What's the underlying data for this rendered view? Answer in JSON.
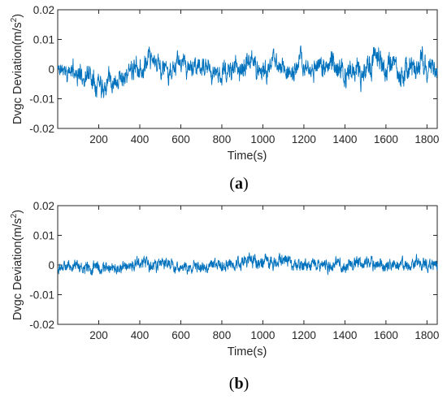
{
  "chart_data": [
    {
      "type": "line",
      "panel_label": "a",
      "xlabel": "Time(s)",
      "ylabel": "Dvgc Deviation(m/s",
      "ylabel_superscript": "2",
      "ylabel_close": ")",
      "xlim": [
        0,
        1850
      ],
      "ylim": [
        -0.02,
        0.02
      ],
      "xticks": [
        200,
        400,
        600,
        800,
        1000,
        1200,
        1400,
        1600,
        1800
      ],
      "yticks": [
        -0.02,
        -0.01,
        0,
        0.01,
        0.02
      ],
      "ytick_labels": [
        "-0.02",
        "-0.01",
        "0",
        "0.01",
        "0.02"
      ],
      "line_color": "#0072BD",
      "grid": false,
      "envelope": [
        [
          0,
          0.006,
          -0.006
        ],
        [
          100,
          0.008,
          -0.01
        ],
        [
          200,
          0.009,
          -0.01
        ],
        [
          300,
          0.009,
          -0.009
        ],
        [
          400,
          0.009,
          -0.01
        ],
        [
          500,
          0.009,
          -0.008
        ],
        [
          600,
          0.008,
          -0.008
        ],
        [
          700,
          0.007,
          -0.008
        ],
        [
          800,
          0.008,
          -0.009
        ],
        [
          900,
          0.011,
          -0.01
        ],
        [
          1000,
          0.01,
          -0.009
        ],
        [
          1100,
          0.009,
          -0.008
        ],
        [
          1200,
          0.009,
          -0.009
        ],
        [
          1300,
          0.01,
          -0.01
        ],
        [
          1400,
          0.013,
          -0.011
        ],
        [
          1500,
          0.012,
          -0.012
        ],
        [
          1600,
          0.01,
          -0.01
        ],
        [
          1700,
          0.012,
          -0.01
        ],
        [
          1800,
          0.012,
          -0.01
        ],
        [
          1850,
          0.008,
          -0.006
        ]
      ]
    },
    {
      "type": "line",
      "panel_label": "b",
      "xlabel": "Time(s)",
      "ylabel": "Dvgc Deviation(m/s",
      "ylabel_superscript": "2",
      "ylabel_close": ")",
      "xlim": [
        0,
        1850
      ],
      "ylim": [
        -0.02,
        0.02
      ],
      "xticks": [
        200,
        400,
        600,
        800,
        1000,
        1200,
        1400,
        1600,
        1800
      ],
      "yticks": [
        -0.02,
        -0.01,
        0,
        0.01,
        0.02
      ],
      "ytick_labels": [
        "-0.02",
        "-0.01",
        "0",
        "0.01",
        "0.02"
      ],
      "line_color": "#0072BD",
      "grid": false,
      "envelope": [
        [
          0,
          0.006,
          -0.006
        ],
        [
          100,
          0.005,
          -0.007
        ],
        [
          200,
          0.005,
          -0.007
        ],
        [
          300,
          0.005,
          -0.006
        ],
        [
          400,
          0.006,
          -0.006
        ],
        [
          500,
          0.006,
          -0.006
        ],
        [
          600,
          0.005,
          -0.006
        ],
        [
          700,
          0.005,
          -0.007
        ],
        [
          800,
          0.006,
          -0.006
        ],
        [
          900,
          0.008,
          -0.006
        ],
        [
          1000,
          0.008,
          -0.006
        ],
        [
          1100,
          0.007,
          -0.006
        ],
        [
          1200,
          0.006,
          -0.006
        ],
        [
          1300,
          0.006,
          -0.006
        ],
        [
          1400,
          0.006,
          -0.006
        ],
        [
          1500,
          0.007,
          -0.006
        ],
        [
          1600,
          0.006,
          -0.006
        ],
        [
          1700,
          0.006,
          -0.006
        ],
        [
          1800,
          0.007,
          -0.007
        ],
        [
          1850,
          0.006,
          -0.006
        ]
      ]
    }
  ],
  "captions": [
    {
      "open": "(",
      "letter": "a",
      "close": ")"
    },
    {
      "open": "(",
      "letter": "b",
      "close": ")"
    }
  ]
}
